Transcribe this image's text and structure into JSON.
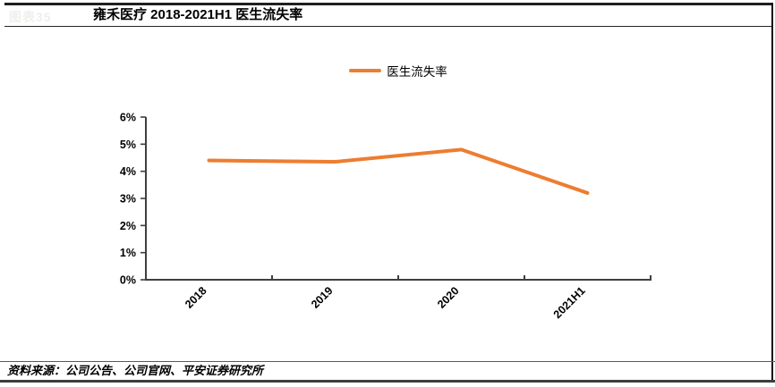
{
  "figure": {
    "tag": "图表35",
    "title": "雍禾医疗 2018-2021H1 医生流失率",
    "source": "资料来源：公司公告、公司官网、平安证券研究所"
  },
  "chart_data": {
    "type": "line",
    "title": "雍禾医疗 2018-2021H1 医生流失率",
    "categories": [
      "2018",
      "2019",
      "2020",
      "2021H1"
    ],
    "series": [
      {
        "name": "医生流失率",
        "color": "#ED7D31",
        "values": [
          4.4,
          4.35,
          4.8,
          3.2
        ]
      }
    ],
    "xlabel": "",
    "ylabel": "",
    "ylim": [
      0,
      6
    ],
    "ytick_step": 1,
    "yticks": [
      "0%",
      "1%",
      "2%",
      "3%",
      "4%",
      "5%",
      "6%"
    ],
    "grid": false,
    "x_label_rotation": -45,
    "legend": {
      "label": "医生流失率",
      "position": "top-center",
      "marker_color": "#ED7D31"
    }
  },
  "colors": {
    "accent_orange": "#ED7D31",
    "axis": "#3f3f3f",
    "rule_dark": "#1f1f1f",
    "faint_tag": "#f1efec"
  }
}
